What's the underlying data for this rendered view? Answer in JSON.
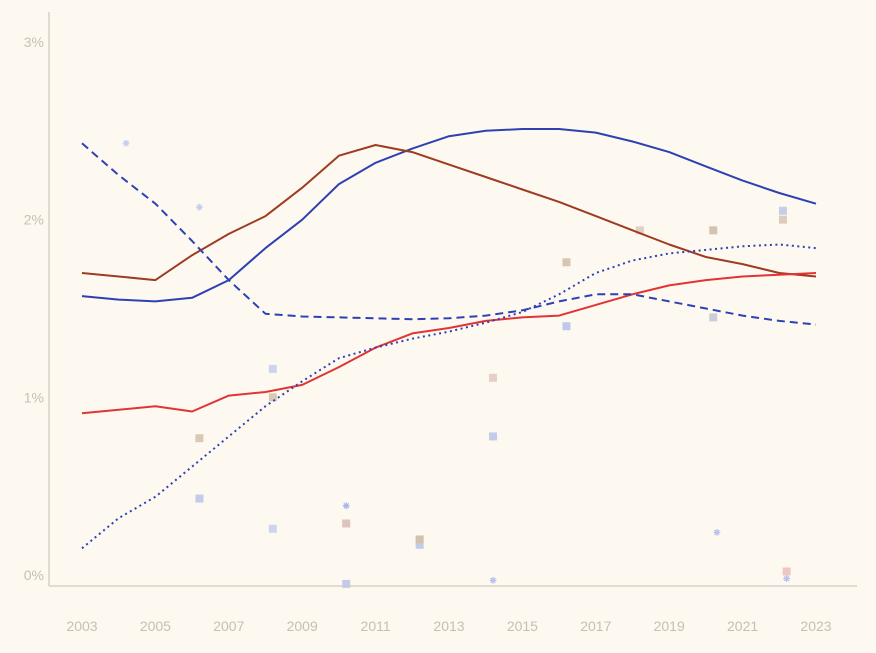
{
  "colors": {
    "background": "#fdf9f1",
    "axis_line": "#d0cabe",
    "tick_label": "#c6bfb2",
    "blue": "#2e41b3",
    "dark_red": "#9e3b21",
    "red": "#e03534"
  },
  "chart_data": {
    "type": "line",
    "title": "",
    "xlabel": "",
    "ylabel": "",
    "grid": false,
    "legend": false,
    "x_axis": {
      "tick_labels": [
        "2003",
        "2005",
        "2007",
        "2009",
        "2011",
        "2013",
        "2015",
        "2017",
        "2019",
        "2021",
        "2023"
      ],
      "tick_values": [
        2003,
        2005,
        2007,
        2009,
        2011,
        2013,
        2015,
        2017,
        2019,
        2021,
        2023
      ],
      "range": [
        2003,
        2023
      ]
    },
    "y_axis": {
      "tick_labels": [
        "0%",
        "1%",
        "2%",
        "3%"
      ],
      "tick_values": [
        0,
        1,
        2,
        3
      ],
      "range": [
        0,
        3
      ]
    },
    "x": [
      2003,
      2004,
      2005,
      2006,
      2007,
      2008,
      2009,
      2010,
      2011,
      2012,
      2013,
      2014,
      2015,
      2016,
      2017,
      2018,
      2019,
      2020,
      2021,
      2022,
      2023
    ],
    "series": [
      {
        "name": "blue-solid",
        "style": "solid",
        "color": "#2e41b3",
        "values": [
          1.57,
          1.55,
          1.54,
          1.56,
          1.66,
          1.84,
          2.0,
          2.2,
          2.32,
          2.4,
          2.47,
          2.5,
          2.51,
          2.51,
          2.49,
          2.44,
          2.38,
          2.3,
          2.22,
          2.15,
          2.09
        ]
      },
      {
        "name": "dark-red-solid",
        "style": "solid",
        "color": "#9e3b21",
        "values": [
          1.7,
          1.68,
          1.66,
          1.8,
          1.92,
          2.02,
          2.18,
          2.36,
          2.42,
          2.38,
          2.31,
          2.24,
          2.17,
          2.1,
          2.02,
          1.94,
          1.86,
          1.79,
          1.75,
          1.7,
          1.68
        ]
      },
      {
        "name": "red-solid",
        "style": "solid",
        "color": "#e03534",
        "values": [
          0.91,
          0.93,
          0.95,
          0.92,
          1.01,
          1.03,
          1.07,
          1.17,
          1.28,
          1.36,
          1.39,
          1.43,
          1.45,
          1.46,
          1.52,
          1.58,
          1.63,
          1.66,
          1.68,
          1.69,
          1.7
        ]
      },
      {
        "name": "blue-dashed",
        "style": "dashed",
        "color": "#2e41b3",
        "values": [
          2.43,
          2.25,
          2.09,
          1.88,
          1.66,
          1.47,
          1.455,
          1.45,
          1.445,
          1.44,
          1.445,
          1.46,
          1.49,
          1.54,
          1.58,
          1.58,
          1.54,
          1.5,
          1.46,
          1.43,
          1.41
        ]
      },
      {
        "name": "blue-dotted",
        "style": "dotted",
        "color": "#2e41b3",
        "values": [
          0.15,
          0.32,
          0.44,
          0.61,
          0.78,
          0.95,
          1.09,
          1.22,
          1.28,
          1.33,
          1.37,
          1.42,
          1.48,
          1.58,
          1.7,
          1.77,
          1.81,
          1.83,
          1.85,
          1.86,
          1.84
        ]
      }
    ],
    "markers": [
      {
        "x": 2004.2,
        "y": 2.43,
        "shape": "star",
        "color": "#c5cdee"
      },
      {
        "x": 2006.2,
        "y": 2.07,
        "shape": "star",
        "color": "#c5cdee"
      },
      {
        "x": 2006.2,
        "y": 0.77,
        "shape": "square",
        "color": "#dbc9b4"
      },
      {
        "x": 2006.2,
        "y": 0.43,
        "shape": "square",
        "color": "#c2cbe9"
      },
      {
        "x": 2008.2,
        "y": 1.16,
        "shape": "square",
        "color": "#ccd4ee"
      },
      {
        "x": 2008.2,
        "y": 1.0,
        "shape": "square",
        "color": "#dbc9b4"
      },
      {
        "x": 2008.2,
        "y": 0.26,
        "shape": "square",
        "color": "#ccd4ee"
      },
      {
        "x": 2010.2,
        "y": 0.39,
        "shape": "star",
        "color": "#aab7e6"
      },
      {
        "x": 2010.2,
        "y": 0.29,
        "shape": "square",
        "color": "#ddc4bc"
      },
      {
        "x": 2010.2,
        "y": -0.05,
        "shape": "square",
        "color": "#c2cbe9"
      },
      {
        "x": 2012.2,
        "y": 0.17,
        "shape": "square",
        "color": "#c2cbe9"
      },
      {
        "x": 2012.2,
        "y": 0.2,
        "shape": "square",
        "color": "#d3c1ae"
      },
      {
        "x": 2014.2,
        "y": 1.11,
        "shape": "square",
        "color": "#e7cfc9"
      },
      {
        "x": 2014.2,
        "y": 0.78,
        "shape": "square",
        "color": "#c2cbe9"
      },
      {
        "x": 2014.2,
        "y": -0.03,
        "shape": "star",
        "color": "#b8c3ea"
      },
      {
        "x": 2016.2,
        "y": 1.76,
        "shape": "square",
        "color": "#d8c6b2"
      },
      {
        "x": 2016.2,
        "y": 1.4,
        "shape": "square",
        "color": "#bfc8e8"
      },
      {
        "x": 2018.2,
        "y": 1.94,
        "shape": "square",
        "color": "#e4cec6"
      },
      {
        "x": 2020.2,
        "y": 1.94,
        "shape": "square",
        "color": "#d4c3b0"
      },
      {
        "x": 2020.2,
        "y": 1.45,
        "shape": "square",
        "color": "#cdccd8"
      },
      {
        "x": 2020.3,
        "y": 0.24,
        "shape": "star",
        "color": "#b8c3ea"
      },
      {
        "x": 2022.1,
        "y": 2.05,
        "shape": "square",
        "color": "#c4cdea"
      },
      {
        "x": 2022.1,
        "y": 2.0,
        "shape": "square",
        "color": "#ddccba"
      },
      {
        "x": 2022.2,
        "y": 0.02,
        "shape": "square",
        "color": "#eec6c2"
      },
      {
        "x": 2022.2,
        "y": -0.02,
        "shape": "star",
        "color": "#b8c3ea"
      }
    ]
  }
}
